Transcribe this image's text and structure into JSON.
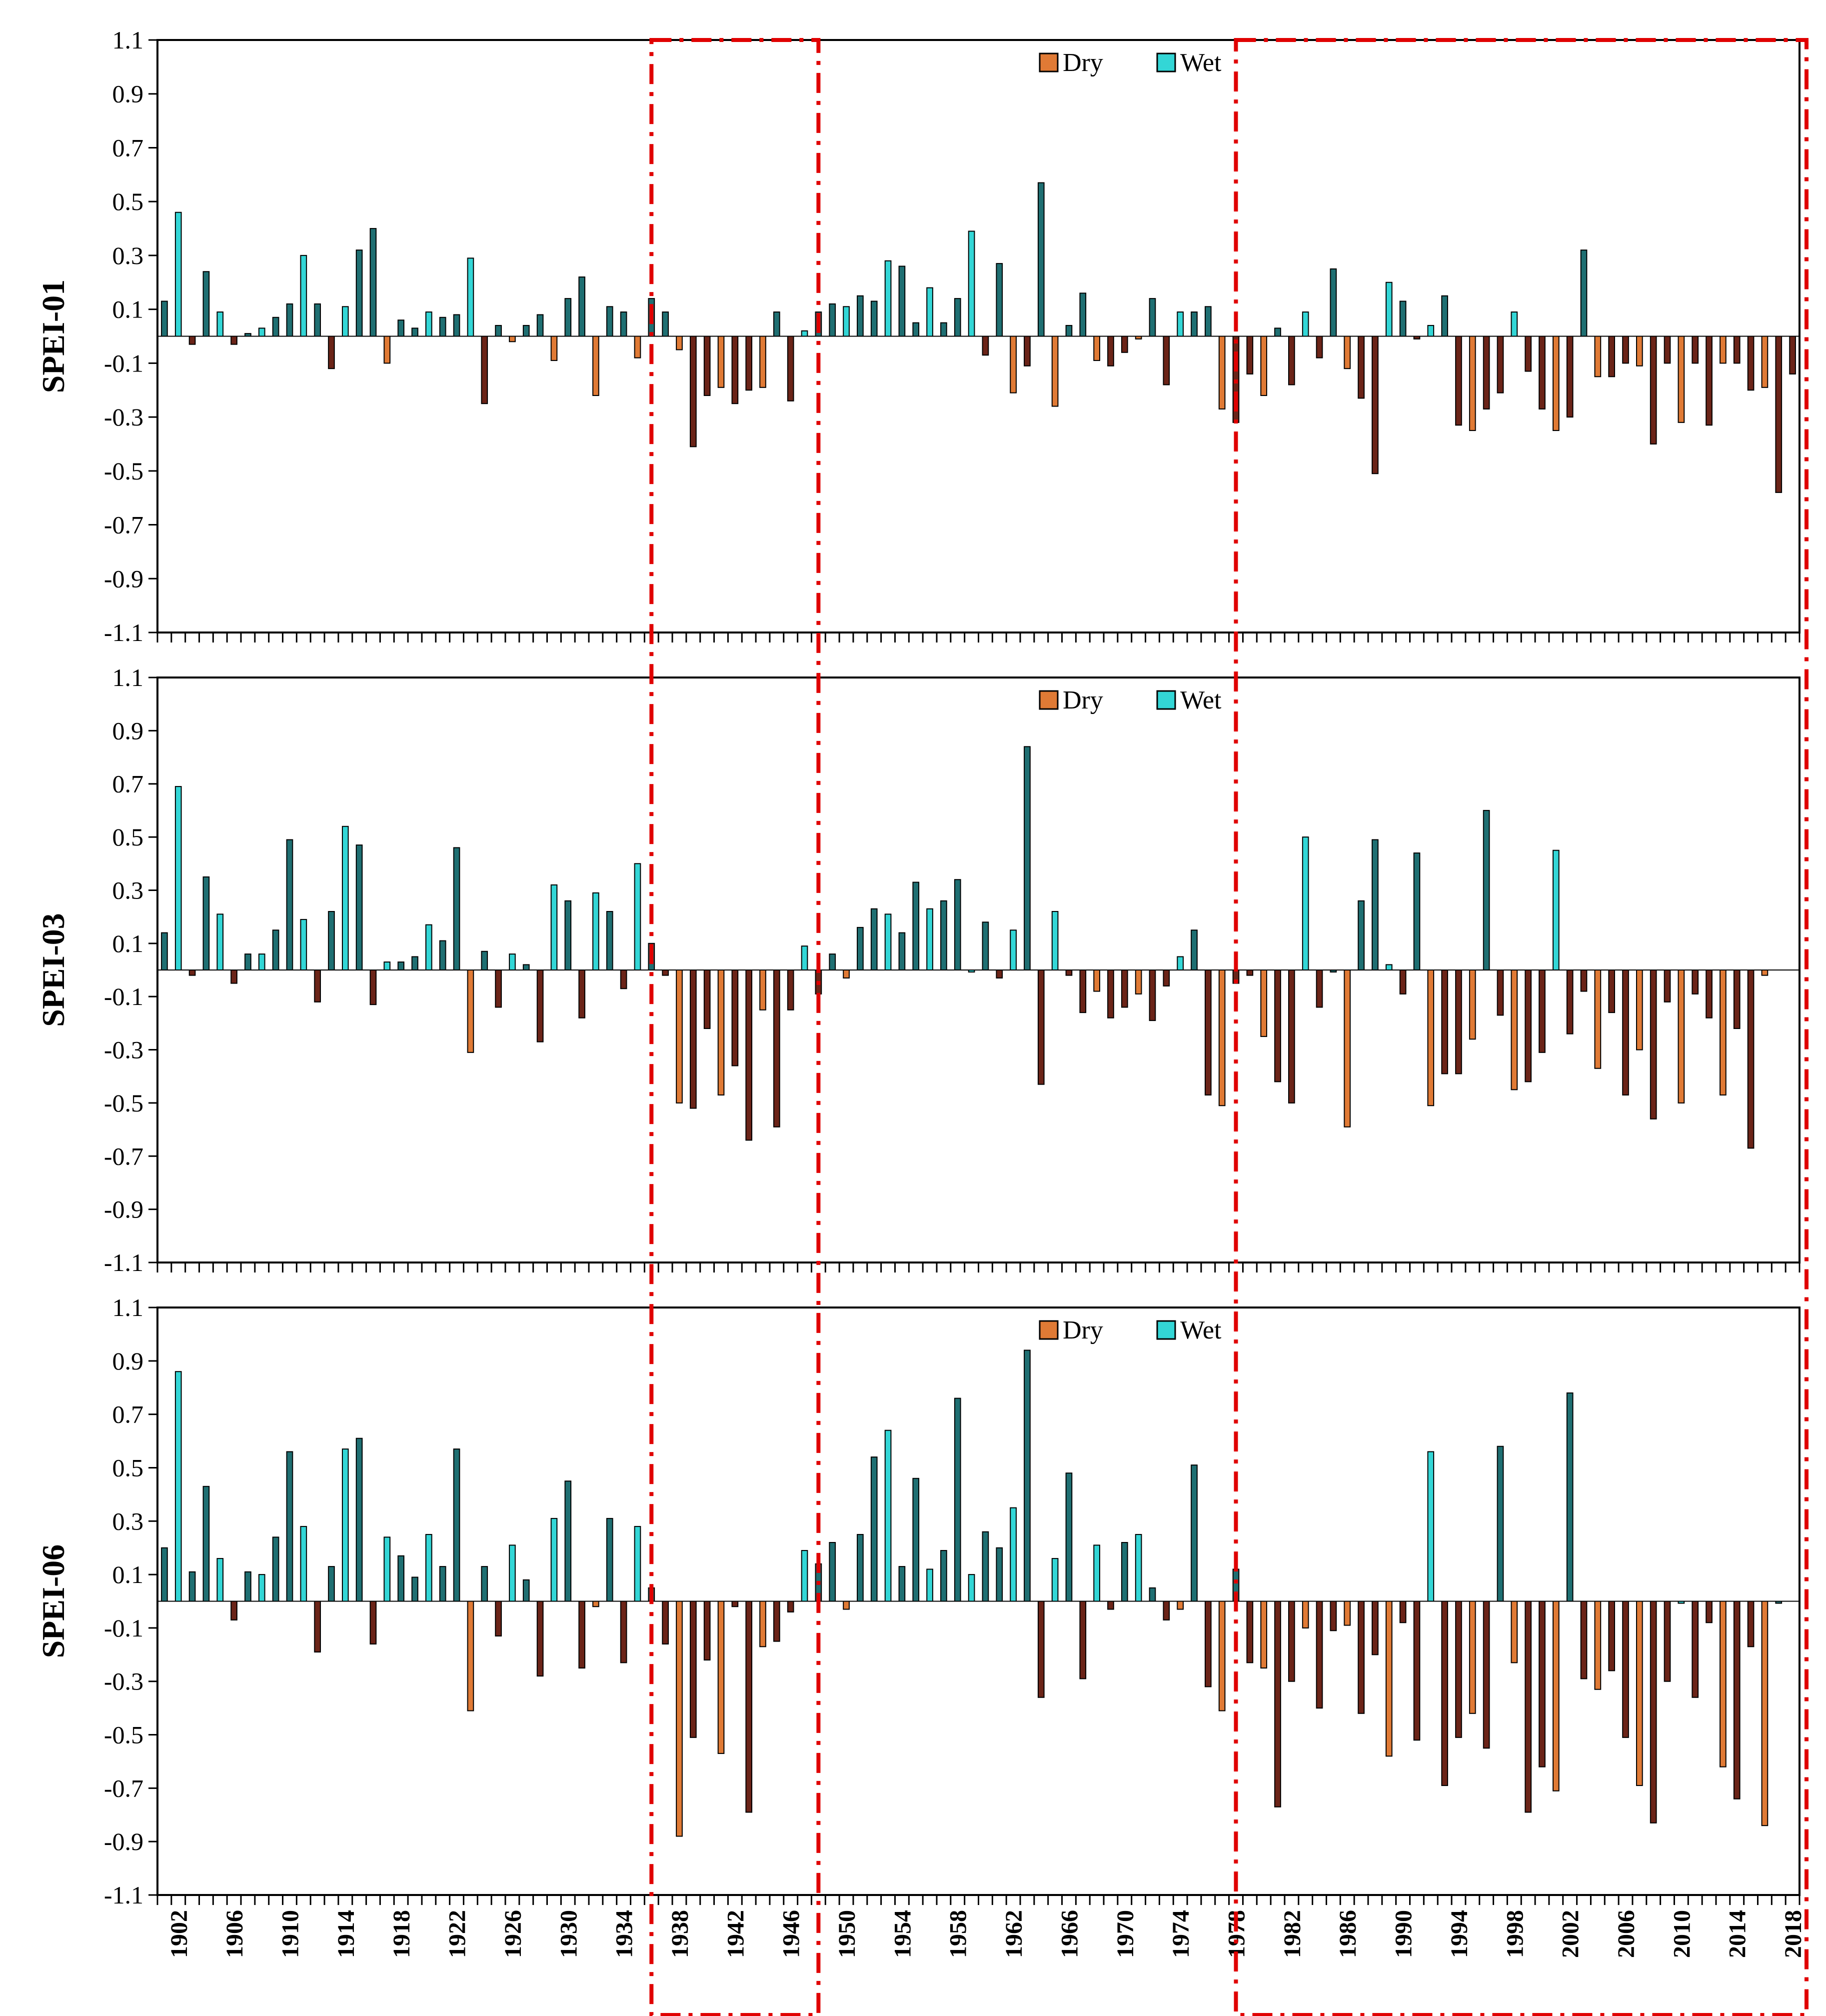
{
  "chart_data": {
    "type": "bar",
    "title": "",
    "x_start_year": 1901,
    "x_end_year": 2018,
    "xtick_labels": [
      "1902",
      "1906",
      "1910",
      "1914",
      "1918",
      "1922",
      "1926",
      "1930",
      "1934",
      "1938",
      "1942",
      "1946",
      "1950",
      "1954",
      "1958",
      "1962",
      "1966",
      "1970",
      "1974",
      "1978",
      "1982",
      "1986",
      "1990",
      "1994",
      "1998",
      "2002",
      "2006",
      "2010",
      "2014",
      "2018"
    ],
    "yticks": [
      "1.1",
      "0.9",
      "0.7",
      "0.5",
      "0.3",
      "0.1",
      "-0.1",
      "-0.3",
      "-0.5",
      "-0.7",
      "-0.9",
      "-1.1"
    ],
    "ylim": [
      -1.1,
      1.1
    ],
    "legend": {
      "dry_label": "Dry",
      "wet_label": "Wet",
      "placement": "top-center"
    },
    "colors": {
      "wet_light": "#33d6d6",
      "wet_dark": "#1f6f72",
      "dry_light": "#e07a35",
      "dry_dark": "#6b2418",
      "highlight": "#e00000"
    },
    "highlight_periods": [
      [
        1936,
        1948
      ],
      [
        1978,
        2018
      ]
    ],
    "panels": [
      {
        "ylabel": "SPEI-01",
        "values": [
          0.13,
          0.46,
          -0.03,
          0.24,
          0.09,
          -0.03,
          0.01,
          0.03,
          0.07,
          0.12,
          0.3,
          0.12,
          -0.12,
          0.11,
          0.32,
          0.4,
          -0.1,
          0.06,
          0.03,
          0.09,
          0.07,
          0.08,
          0.29,
          -0.25,
          0.04,
          -0.02,
          0.04,
          0.08,
          -0.09,
          0.14,
          0.22,
          -0.22,
          0.11,
          0.09,
          -0.08,
          0.14,
          0.09,
          -0.05,
          -0.41,
          -0.22,
          -0.19,
          -0.25,
          -0.2,
          -0.19,
          0.09,
          -0.24,
          0.02,
          0.09,
          0.12,
          0.11,
          0.15,
          0.13,
          0.28,
          0.26,
          0.05,
          0.18,
          0.05,
          0.14,
          0.39,
          -0.07,
          0.27,
          -0.21,
          -0.11,
          0.57,
          -0.26,
          0.04,
          0.16,
          -0.09,
          -0.11,
          -0.06,
          -0.01,
          0.14,
          -0.18,
          0.09,
          0.09,
          0.11,
          -0.27,
          -0.32,
          -0.14,
          -0.22,
          0.03,
          -0.18,
          0.09,
          -0.08,
          0.25,
          -0.12,
          -0.23,
          -0.51,
          0.2,
          0.13,
          -0.01,
          0.04,
          0.15,
          -0.33,
          -0.35,
          -0.27,
          -0.21,
          0.09,
          -0.13,
          -0.27,
          -0.35,
          -0.3,
          0.32,
          -0.15,
          -0.15,
          -0.1,
          -0.11,
          -0.4,
          -0.1,
          -0.32,
          -0.1,
          -0.33,
          -0.1,
          -0.1,
          -0.2,
          -0.19,
          -0.58,
          -0.14
        ]
      },
      {
        "ylabel": "SPEI-03",
        "values": [
          0.14,
          0.69,
          -0.02,
          0.35,
          0.21,
          -0.05,
          0.06,
          0.06,
          0.15,
          0.49,
          0.19,
          -0.12,
          0.22,
          0.54,
          0.47,
          -0.13,
          0.03,
          0.03,
          0.05,
          0.17,
          0.11,
          0.46,
          -0.31,
          0.07,
          -0.14,
          0.06,
          0.02,
          -0.27,
          0.32,
          0.26,
          -0.18,
          0.29,
          0.22,
          -0.07,
          0.4,
          0.1,
          -0.02,
          -0.5,
          -0.52,
          -0.22,
          -0.47,
          -0.36,
          -0.64,
          -0.15,
          -0.59,
          -0.15,
          0.09,
          -0.09,
          0.06,
          -0.03,
          0.16,
          0.23,
          0.21,
          0.14,
          0.33,
          0.23,
          0.26,
          0.34,
          0.0,
          0.18,
          -0.03,
          0.15,
          0.84,
          -0.43,
          0.22,
          -0.02,
          -0.16,
          -0.08,
          -0.18,
          -0.14,
          -0.09,
          -0.19,
          -0.06,
          0.05,
          0.15,
          -0.47,
          -0.51,
          -0.05,
          -0.02,
          -0.25,
          -0.42,
          -0.5,
          0.5,
          -0.14,
          0.0,
          -0.59,
          0.26,
          0.49,
          0.02,
          -0.09,
          0.44,
          -0.51,
          -0.39,
          -0.39,
          -0.26,
          0.6,
          -0.17,
          -0.45,
          -0.42,
          -0.31,
          0.45,
          -0.24,
          -0.08,
          -0.37,
          -0.16,
          -0.47,
          -0.3,
          -0.56,
          -0.12,
          -0.5,
          -0.09,
          -0.18,
          -0.47,
          -0.22,
          -0.67,
          -0.02
        ]
      },
      {
        "ylabel": "SPEI-06",
        "values": [
          0.2,
          0.86,
          0.11,
          0.43,
          0.16,
          -0.07,
          0.11,
          0.1,
          0.24,
          0.56,
          0.28,
          -0.19,
          0.13,
          0.57,
          0.61,
          -0.16,
          0.24,
          0.17,
          0.09,
          0.25,
          0.13,
          0.57,
          -0.41,
          0.13,
          -0.13,
          0.21,
          0.08,
          -0.28,
          0.31,
          0.45,
          -0.25,
          -0.02,
          0.31,
          -0.23,
          0.28,
          0.05,
          -0.16,
          -0.88,
          -0.51,
          -0.22,
          -0.57,
          -0.02,
          -0.79,
          -0.17,
          -0.15,
          -0.04,
          0.19,
          0.14,
          0.22,
          -0.03,
          0.25,
          0.54,
          0.64,
          0.13,
          0.46,
          0.12,
          0.19,
          0.76,
          0.1,
          0.26,
          0.2,
          0.35,
          0.94,
          -0.36,
          0.16,
          0.48,
          -0.29,
          0.21,
          -0.03,
          0.22,
          0.25,
          0.05,
          -0.07,
          -0.03,
          0.51,
          -0.32,
          -0.41,
          0.12,
          -0.23,
          -0.25,
          -0.77,
          -0.3,
          -0.1,
          -0.4,
          -0.11,
          -0.09,
          -0.42,
          -0.2,
          -0.58,
          -0.08,
          -0.52,
          0.56,
          -0.69,
          -0.51,
          -0.42,
          -0.55,
          0.58,
          -0.23,
          -0.79,
          -0.62,
          -0.71,
          0.78,
          -0.29,
          -0.33,
          -0.26,
          -0.51,
          -0.69,
          -0.83,
          -0.3,
          0.0,
          -0.36,
          -0.08,
          -0.62,
          -0.74,
          -0.17,
          -0.84,
          0.0
        ]
      }
    ]
  }
}
